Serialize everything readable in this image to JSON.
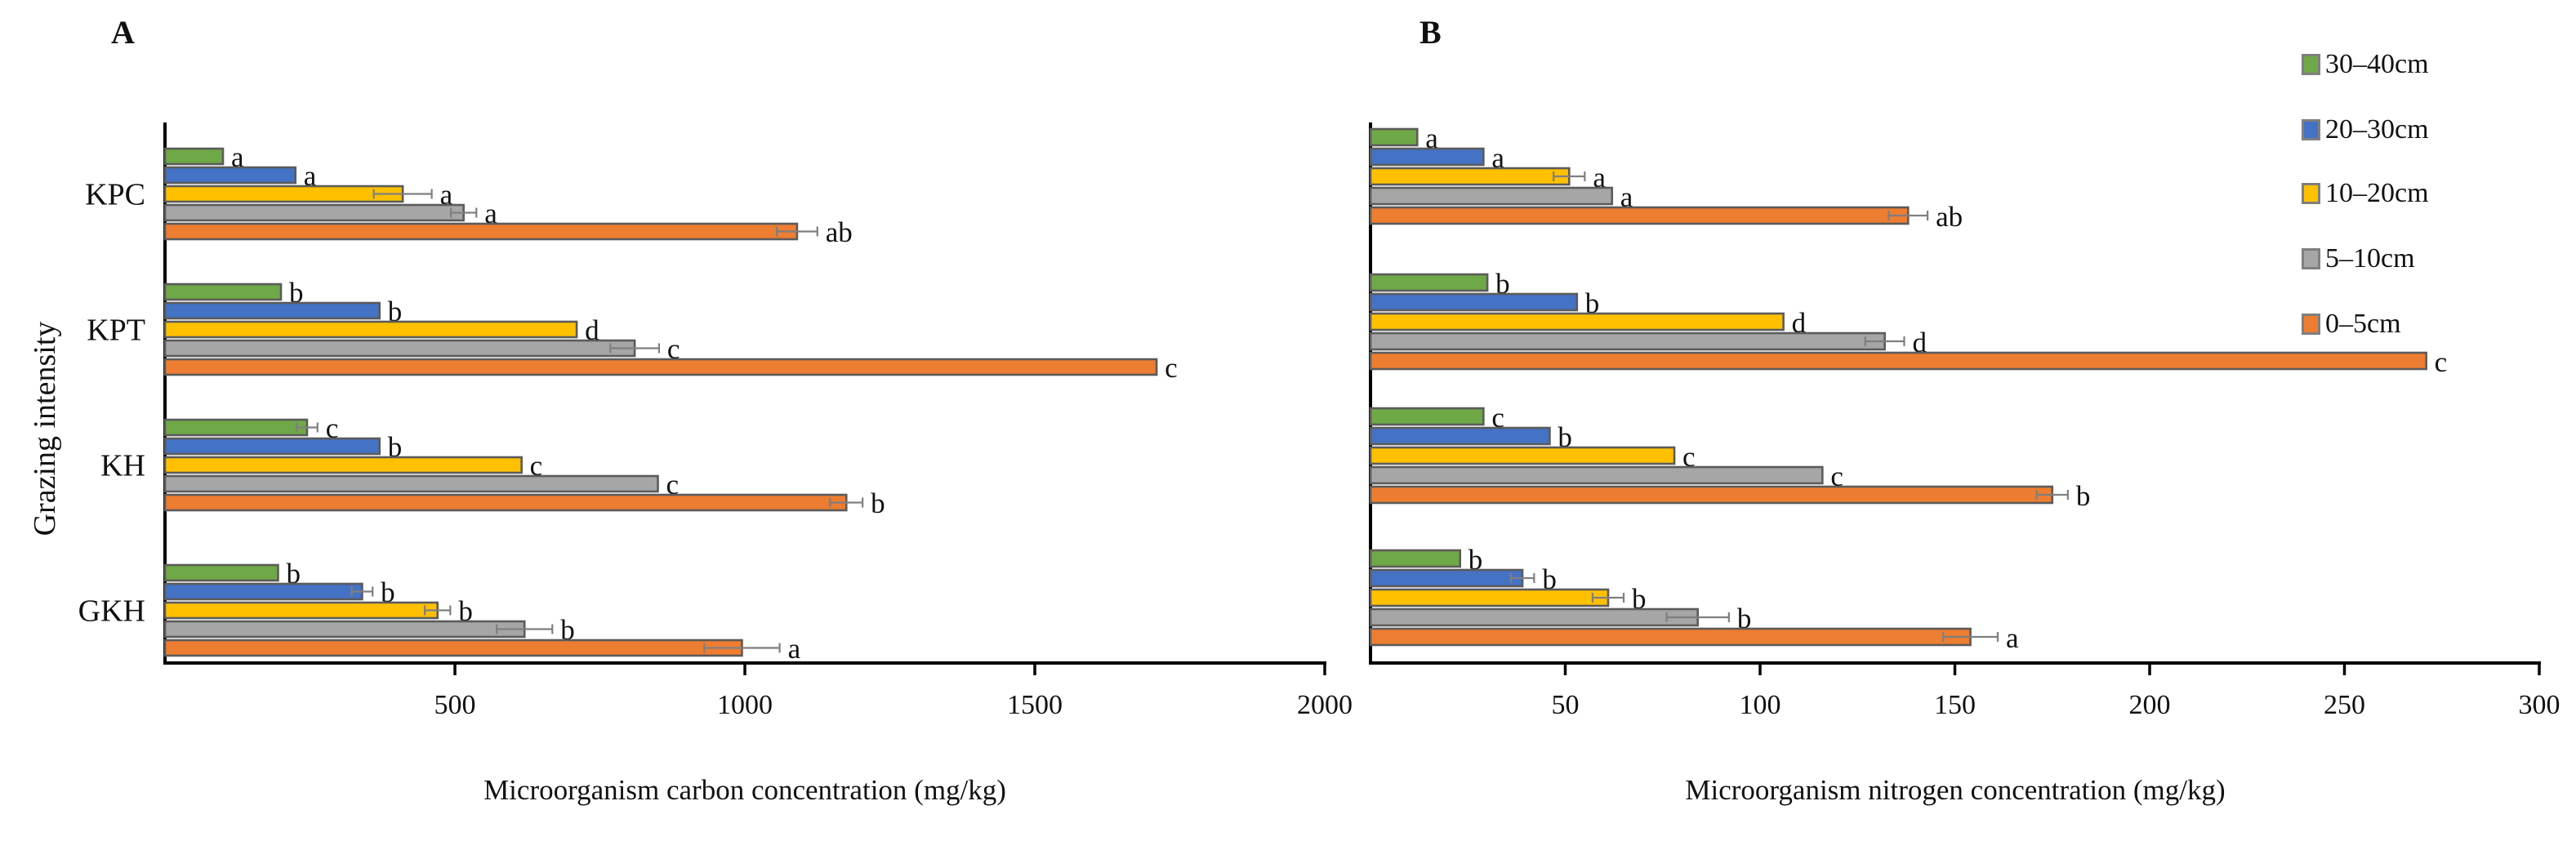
{
  "page": {
    "background": "#ffffff"
  },
  "y_axis_title": "Grazing intensity",
  "panels": {
    "a_label": "A",
    "b_label": "B"
  },
  "legend": {
    "position": "right-top",
    "items": [
      {
        "label": "30–40cm",
        "color": "#6FA846"
      },
      {
        "label": "20–30cm",
        "color": "#4472C4"
      },
      {
        "label": "10–20cm",
        "color": "#FFC000"
      },
      {
        "label": "5–10cm",
        "color": "#A6A6A6"
      },
      {
        "label": "0–5cm",
        "color": "#ED7D31"
      }
    ]
  },
  "style_colors": {
    "bar_border": "#5b5b5b",
    "axis": "#000000",
    "error_bar": "#7f7f7f",
    "letter": "#111111"
  },
  "chart_data": [
    {
      "type": "bar",
      "orientation": "horizontal",
      "panel_label": "A",
      "title": "",
      "xlabel": "Microorganism carbon concentration (mg/kg)",
      "ylabel": "Grazing intensity",
      "xlim": [
        0,
        2000
      ],
      "x_ticks": [
        500,
        1000,
        1500,
        2000
      ],
      "grid": false,
      "categories": [
        "KPC",
        "KPT",
        "KH",
        "GKH"
      ],
      "series": [
        {
          "name": "30–40cm",
          "color": "#6FA846",
          "values": [
            100,
            200,
            245,
            195
          ],
          "errors": [
            0,
            0,
            18,
            0
          ],
          "letters": [
            "a",
            "b",
            "c",
            "b"
          ]
        },
        {
          "name": "20–30cm",
          "color": "#4472C4",
          "values": [
            225,
            370,
            370,
            340
          ],
          "errors": [
            0,
            0,
            0,
            18
          ],
          "letters": [
            "a",
            "b",
            "b",
            "b"
          ]
        },
        {
          "name": "10–20cm",
          "color": "#FFC000",
          "values": [
            410,
            710,
            615,
            470
          ],
          "errors": [
            50,
            0,
            0,
            22
          ],
          "letters": [
            "a",
            "d",
            "c",
            "b"
          ]
        },
        {
          "name": "5–10cm",
          "color": "#A6A6A6",
          "values": [
            515,
            810,
            850,
            620
          ],
          "errors": [
            22,
            42,
            0,
            48
          ],
          "letters": [
            "a",
            "c",
            "c",
            "b"
          ]
        },
        {
          "name": "0–5cm",
          "color": "#ED7D31",
          "values": [
            1090,
            1710,
            1175,
            995
          ],
          "errors": [
            35,
            0,
            28,
            65
          ],
          "letters": [
            "ab",
            "c",
            "b",
            "a"
          ]
        }
      ]
    },
    {
      "type": "bar",
      "orientation": "horizontal",
      "panel_label": "B",
      "title": "",
      "xlabel": "Microorganism nitrogen concentration (mg/kg)",
      "ylabel": "",
      "xlim": [
        0,
        300
      ],
      "x_ticks": [
        50,
        100,
        150,
        200,
        250,
        300
      ],
      "grid": false,
      "categories": [
        "KPC",
        "KPT",
        "KH",
        "GKH"
      ],
      "series": [
        {
          "name": "30–40cm",
          "color": "#6FA846",
          "values": [
            12,
            30,
            29,
            23
          ],
          "errors": [
            0,
            0,
            0,
            0
          ],
          "letters": [
            "a",
            "b",
            "c",
            "b"
          ]
        },
        {
          "name": "20–30cm",
          "color": "#4472C4",
          "values": [
            29,
            53,
            46,
            39
          ],
          "errors": [
            0,
            0,
            0,
            3
          ],
          "letters": [
            "a",
            "b",
            "b",
            "b"
          ]
        },
        {
          "name": "10–20cm",
          "color": "#FFC000",
          "values": [
            51,
            106,
            78,
            61
          ],
          "errors": [
            4,
            0,
            0,
            4
          ],
          "letters": [
            "a",
            "d",
            "c",
            "b"
          ]
        },
        {
          "name": "5–10cm",
          "color": "#A6A6A6",
          "values": [
            62,
            132,
            116,
            84
          ],
          "errors": [
            0,
            5,
            0,
            8
          ],
          "letters": [
            "a",
            "d",
            "c",
            "b"
          ]
        },
        {
          "name": "0–5cm",
          "color": "#ED7D31",
          "values": [
            138,
            271,
            175,
            154
          ],
          "errors": [
            5,
            0,
            4,
            7
          ],
          "letters": [
            "ab",
            "c",
            "b",
            "a"
          ]
        }
      ]
    }
  ]
}
